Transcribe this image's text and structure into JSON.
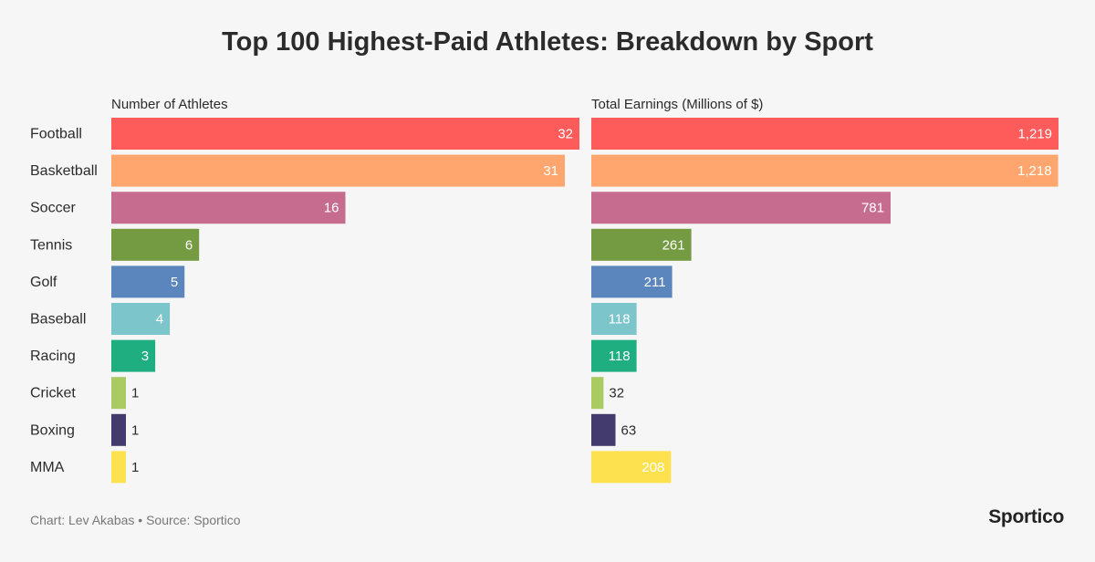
{
  "title": "Top 100 Highest-Paid Athletes: Breakdown by Sport",
  "source": "Chart: Lev Akabas • Source: Sportico",
  "brand": "Sportico",
  "chart_data": {
    "type": "bar",
    "orientation": "horizontal",
    "categories": [
      "Football",
      "Basketball",
      "Soccer",
      "Tennis",
      "Golf",
      "Baseball",
      "Racing",
      "Cricket",
      "Boxing",
      "MMA"
    ],
    "colors": [
      "#fe5b5b",
      "#fea66e",
      "#c66c8f",
      "#749a42",
      "#5b86bd",
      "#7cc5cb",
      "#1fae7f",
      "#a9cb62",
      "#433b6e",
      "#fde14f"
    ],
    "series": [
      {
        "name": "Number of Athletes",
        "values": [
          32,
          31,
          16,
          6,
          5,
          4,
          3,
          1,
          1,
          1
        ],
        "labels": [
          "32",
          "31",
          "16",
          "6",
          "5",
          "4",
          "3",
          "1",
          "1",
          "1"
        ]
      },
      {
        "name": "Total Earnings (Millions of $)",
        "values": [
          1219,
          1218,
          781,
          261,
          211,
          118,
          118,
          32,
          63,
          208
        ],
        "labels": [
          "1,219",
          "1,218",
          "781",
          "261",
          "211",
          "118",
          "118",
          "32",
          "63",
          "208"
        ]
      }
    ],
    "grid": false,
    "legend": "none"
  }
}
